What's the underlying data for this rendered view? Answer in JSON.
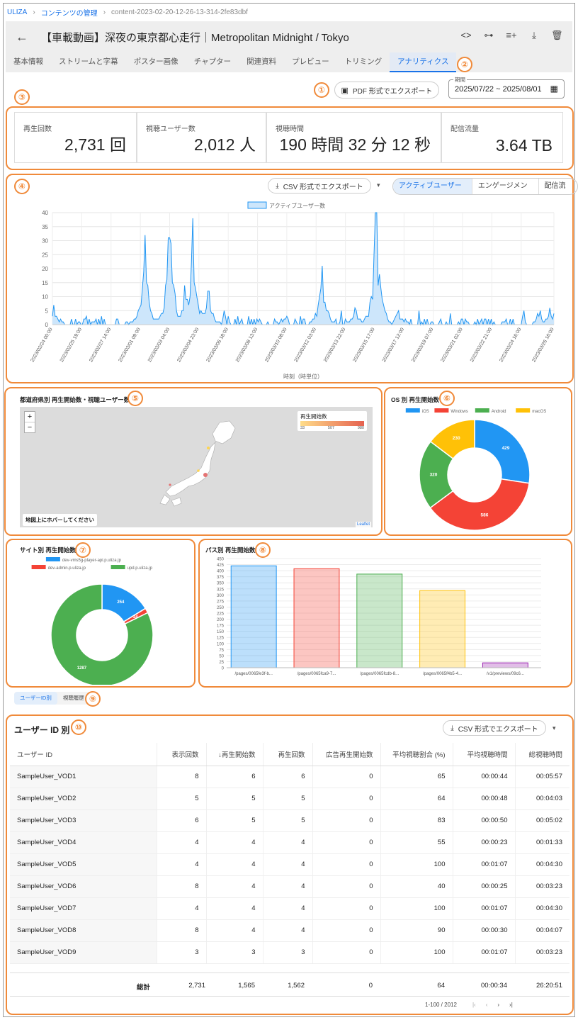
{
  "breadcrumb": {
    "root": "ULIZA",
    "section": "コンテンツの管理",
    "current": "content-2023-02-20-12-26-13-314-2fe83dbf"
  },
  "header": {
    "title": "【車載動画】深夜の東京都心走行｜Metropolitan Midnight / Tokyo"
  },
  "tabs": [
    "基本情報",
    "ストリームと字幕",
    "ポスター画像",
    "チャプター",
    "関連資料",
    "プレビュー",
    "トリミング",
    "アナリティクス"
  ],
  "active_tab": "アナリティクス",
  "markers": [
    "①",
    "②",
    "③",
    "④",
    "⑤",
    "⑥",
    "⑦",
    "⑧",
    "⑨",
    "⑩"
  ],
  "export_pdf": "PDF 形式でエクスポート",
  "period": {
    "label": "期間",
    "value": "2025/07/22 ~ 2025/08/01"
  },
  "kpis": [
    {
      "label": "再生回数",
      "value": "2,731 回"
    },
    {
      "label": "視聴ユーザー数",
      "value": "2,012 人"
    },
    {
      "label": "視聴時間",
      "value": "190 時間 32 分 12 秒"
    },
    {
      "label": "配信流量",
      "value": "3.64 TB"
    }
  ],
  "export_csv": "CSV 形式でエクスポート",
  "metric_toggle": [
    "アクティブユーザー数",
    "エンゲージメント",
    "配信流量"
  ],
  "active_metric": "アクティブユーザー数",
  "prefecture_panel": {
    "title": "都道府県別 再生開始数・視聴ユーザー数",
    "legend_title": "再生開始数",
    "legend_ticks": [
      "33",
      "507",
      "980"
    ],
    "hint": "地図上にホバーしてください",
    "attribution": "Leaflet"
  },
  "user_tabs": [
    "ユーザーID別",
    "視聴履歴"
  ],
  "user_table": {
    "title": "ユーザー ID 別",
    "columns": [
      "ユーザー ID",
      "表示回数",
      "再生開始数",
      "再生回数",
      "広告再生開始数",
      "平均視聴割合 (%)",
      "平均視聴時間",
      "総視聴時間"
    ],
    "rows": [
      [
        "SampleUser_VOD1",
        "8",
        "6",
        "6",
        "0",
        "65",
        "00:00:44",
        "00:05:57"
      ],
      [
        "SampleUser_VOD2",
        "5",
        "5",
        "5",
        "0",
        "64",
        "00:00:48",
        "00:04:03"
      ],
      [
        "SampleUser_VOD3",
        "6",
        "5",
        "5",
        "0",
        "83",
        "00:00:50",
        "00:05:02"
      ],
      [
        "SampleUser_VOD4",
        "4",
        "4",
        "4",
        "0",
        "55",
        "00:00:23",
        "00:01:33"
      ],
      [
        "SampleUser_VOD5",
        "4",
        "4",
        "4",
        "0",
        "100",
        "00:01:07",
        "00:04:30"
      ],
      [
        "SampleUser_VOD6",
        "8",
        "4",
        "4",
        "0",
        "40",
        "00:00:25",
        "00:03:23"
      ],
      [
        "SampleUser_VOD7",
        "4",
        "4",
        "4",
        "0",
        "100",
        "00:01:07",
        "00:04:30"
      ],
      [
        "SampleUser_VOD8",
        "8",
        "4",
        "4",
        "0",
        "90",
        "00:00:30",
        "00:04:07"
      ],
      [
        "SampleUser_VOD9",
        "3",
        "3",
        "3",
        "0",
        "100",
        "00:01:07",
        "00:03:23"
      ]
    ],
    "total_label": "総計",
    "totals": [
      "2,731",
      "1,565",
      "1,562",
      "0",
      "64",
      "00:00:34",
      "26:20:51"
    ],
    "pagination": "1-100 / 2012"
  },
  "chart_data": [
    {
      "type": "area",
      "title": "",
      "legend": "アクティブユーザー数",
      "xlabel": "時刻（時単位）",
      "ylim": [
        0,
        40
      ],
      "yticks": [
        0,
        5,
        10,
        15,
        20,
        25,
        30,
        35,
        40
      ],
      "x_ticks": [
        "2023/02/24 00:00",
        "2023/02/25 19:00",
        "2023/02/27 14:00",
        "2023/03/01 09:00",
        "2023/03/03 04:00",
        "2023/03/04 23:00",
        "2023/03/06 18:00",
        "2023/03/08 13:00",
        "2023/03/10 08:00",
        "2023/03/12 03:00",
        "2023/03/13 22:00",
        "2023/03/15 17:00",
        "2023/03/17 12:00",
        "2023/03/19 07:00",
        "2023/03/21 02:00",
        "2023/03/22 21:00",
        "2023/03/24 16:00",
        "2023/03/26 16:00"
      ],
      "peaks": [
        {
          "x": "2023/02/24 02:00",
          "y": 7
        },
        {
          "x": "2023/03/01 16:00",
          "y": 32
        },
        {
          "x": "2023/03/03 03:00",
          "y": 31
        },
        {
          "x": "2023/03/03 06:00",
          "y": 29
        },
        {
          "x": "2023/03/04 02:00",
          "y": 14
        },
        {
          "x": "2023/03/04 14:00",
          "y": 38
        },
        {
          "x": "2023/03/05 13:00",
          "y": 12
        },
        {
          "x": "2023/03/12 12:00",
          "y": 21
        },
        {
          "x": "2023/03/14 12:00",
          "y": 6
        },
        {
          "x": "2023/03/15 19:00",
          "y": 40
        },
        {
          "x": "2023/03/17 04:00",
          "y": 5
        },
        {
          "x": "2023/03/25 20:00",
          "y": 5
        },
        {
          "x": "2023/03/26 10:00",
          "y": 6
        }
      ]
    },
    {
      "type": "pie",
      "title": "OS 別 再生開始数",
      "categories": [
        "iOS",
        "Windows",
        "Android",
        "macOS"
      ],
      "values": [
        429,
        586,
        320,
        230
      ],
      "colors": [
        "#2196f3",
        "#f44336",
        "#4caf50",
        "#ffc107"
      ],
      "legend": "top"
    },
    {
      "type": "pie",
      "title": "サイト別 再生開始数",
      "categories": [
        "dev-vms5g-player-api.p.uliza.jp",
        "dev-admin.p.uliza.jp",
        "upd.p.uliza.jp"
      ],
      "values": [
        254,
        24,
        1287
      ],
      "labels": [
        "254",
        "24",
        "1287"
      ],
      "colors": [
        "#2196f3",
        "#f44336",
        "#4caf50"
      ],
      "legend": "top"
    },
    {
      "type": "bar",
      "title": "パス別 再生開始数",
      "categories": [
        "/pages/0065fe3f-b...",
        "/pages/0065fca9-7...",
        "/pages/0065fcdb-8...",
        "/pages/0065f4b5-4...",
        "/v1/previews/09c6..."
      ],
      "values": [
        420,
        408,
        386,
        318,
        20
      ],
      "ylim": [
        0,
        450
      ],
      "yticks": [
        0,
        25,
        50,
        75,
        100,
        125,
        150,
        175,
        200,
        225,
        250,
        275,
        300,
        325,
        350,
        375,
        400,
        425,
        450
      ],
      "colors": [
        "#2196f3",
        "#f44336",
        "#4caf50",
        "#ffc107",
        "#9c27b0"
      ]
    }
  ]
}
